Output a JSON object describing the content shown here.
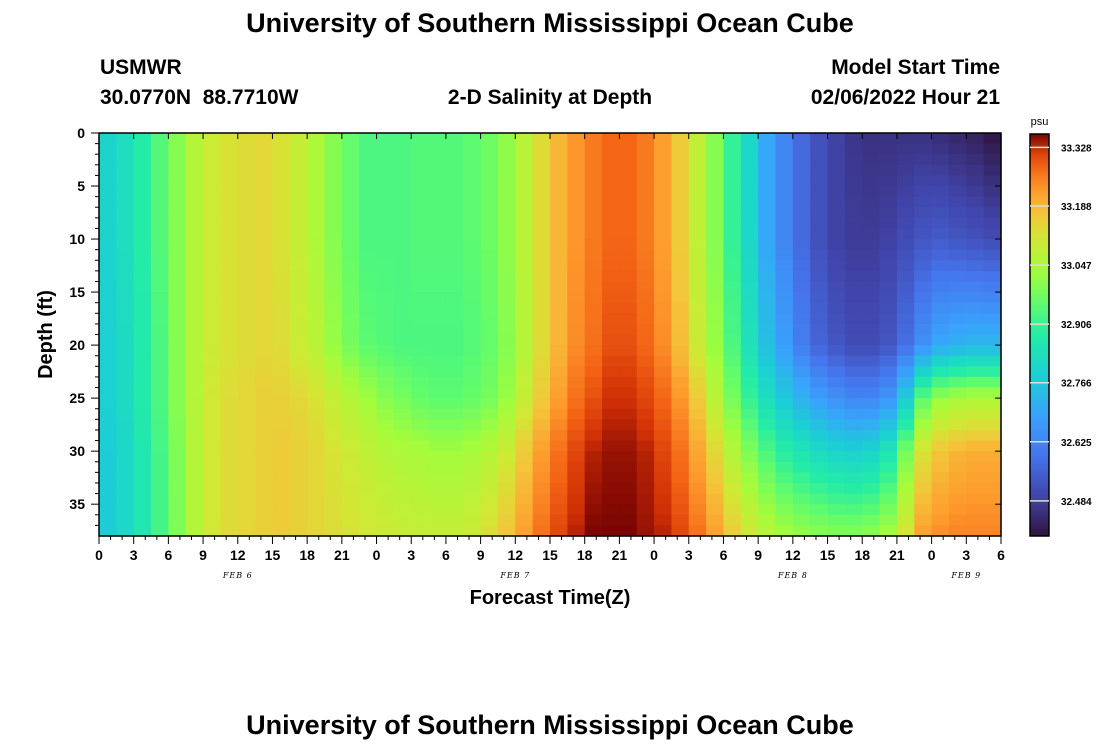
{
  "title": "University of Southern Mississippi Ocean Cube",
  "footer_title": "University of Southern Mississippi Ocean Cube",
  "station": {
    "name": "USMWR",
    "coords": "30.0770N  88.7710W"
  },
  "subtitle": "2-D Salinity at Depth",
  "model_start": {
    "label": "Model Start Time",
    "value": "02/06/2022 Hour 21"
  },
  "chart_data": {
    "type": "heatmap",
    "title": "2-D Salinity at Depth",
    "xlabel": "Forecast Time(Z)",
    "ylabel": "Depth (ft)",
    "x_tick_labels": [
      "0",
      "3",
      "6",
      "9",
      "12",
      "15",
      "18",
      "21",
      "0",
      "3",
      "6",
      "9",
      "12",
      "15",
      "18",
      "21",
      "0",
      "3",
      "6",
      "9",
      "12",
      "15",
      "18",
      "21",
      "0",
      "3",
      "6"
    ],
    "x_range_hours": [
      0,
      78
    ],
    "date_labels": [
      {
        "hour": 12,
        "label": "FEB 6"
      },
      {
        "hour": 36,
        "label": "FEB 7"
      },
      {
        "hour": 60,
        "label": "FEB 8"
      },
      {
        "hour": 75,
        "label": "FEB 9"
      }
    ],
    "y_tick_labels": [
      "0",
      "5",
      "10",
      "15",
      "20",
      "25",
      "30",
      "35"
    ],
    "y_range_ft": [
      0,
      38
    ],
    "colorbar": {
      "unit": "psu",
      "min": 32.4,
      "max": 33.36,
      "tick_labels": [
        "33.328",
        "33.188",
        "33.047",
        "32.906",
        "32.766",
        "32.625",
        "32.484"
      ]
    },
    "grid_columns_hours": [
      0,
      1.5,
      3,
      4.5,
      6,
      7.5,
      9,
      10.5,
      12,
      13.5,
      15,
      16.5,
      18,
      19.5,
      21,
      22.5,
      24,
      25.5,
      27,
      28.5,
      30,
      31.5,
      33,
      34.5,
      36,
      37.5,
      39,
      40.5,
      42,
      43.5,
      45,
      46.5,
      48,
      49.5,
      51,
      52.5,
      54,
      55.5,
      57,
      58.5,
      60,
      61.5,
      63,
      64.5,
      66,
      67.5,
      69,
      70.5,
      72,
      73.5,
      75,
      76.5
    ],
    "grid_depths_ft": [
      0,
      10,
      20,
      25,
      30,
      38
    ],
    "salinity_psu": [
      [
        32.8,
        32.8,
        32.79,
        32.79,
        32.78,
        32.78
      ],
      [
        32.83,
        32.83,
        32.82,
        32.82,
        32.81,
        32.81
      ],
      [
        32.88,
        32.88,
        32.87,
        32.87,
        32.86,
        32.86
      ],
      [
        32.94,
        32.94,
        32.93,
        32.93,
        32.92,
        32.92
      ],
      [
        33.0,
        33.0,
        33.0,
        33.0,
        32.99,
        32.99
      ],
      [
        33.06,
        33.06,
        33.06,
        33.06,
        33.06,
        33.06
      ],
      [
        33.1,
        33.1,
        33.1,
        33.11,
        33.11,
        33.11
      ],
      [
        33.12,
        33.12,
        33.12,
        33.13,
        33.13,
        33.13
      ],
      [
        33.13,
        33.13,
        33.13,
        33.14,
        33.14,
        33.14
      ],
      [
        33.14,
        33.14,
        33.14,
        33.15,
        33.15,
        33.15
      ],
      [
        33.12,
        33.12,
        33.13,
        33.15,
        33.16,
        33.16
      ],
      [
        33.09,
        33.09,
        33.1,
        33.14,
        33.15,
        33.15
      ],
      [
        33.05,
        33.05,
        33.07,
        33.12,
        33.14,
        33.14
      ],
      [
        33.0,
        33.0,
        33.02,
        33.09,
        33.12,
        33.13
      ],
      [
        32.96,
        32.96,
        32.98,
        33.06,
        33.1,
        33.12
      ],
      [
        32.93,
        32.93,
        32.95,
        33.03,
        33.08,
        33.11
      ],
      [
        32.93,
        32.93,
        32.94,
        33.0,
        33.06,
        33.1
      ],
      [
        32.93,
        32.93,
        32.93,
        32.98,
        33.05,
        33.09
      ],
      [
        32.94,
        32.94,
        32.93,
        32.96,
        33.04,
        33.09
      ],
      [
        32.94,
        32.94,
        32.93,
        32.95,
        33.03,
        33.09
      ],
      [
        32.94,
        32.94,
        32.93,
        32.95,
        33.03,
        33.09
      ],
      [
        32.95,
        32.95,
        32.94,
        32.96,
        33.04,
        33.1
      ],
      [
        32.97,
        32.97,
        32.96,
        32.98,
        33.06,
        33.13
      ],
      [
        33.01,
        33.01,
        33.0,
        33.02,
        33.1,
        33.17
      ],
      [
        33.07,
        33.07,
        33.06,
        33.09,
        33.16,
        33.22
      ],
      [
        33.13,
        33.13,
        33.13,
        33.16,
        33.22,
        33.27
      ],
      [
        33.19,
        33.19,
        33.19,
        33.22,
        33.27,
        33.31
      ],
      [
        33.23,
        33.23,
        33.24,
        33.27,
        33.31,
        33.34
      ],
      [
        33.26,
        33.26,
        33.27,
        33.3,
        33.34,
        33.36
      ],
      [
        33.28,
        33.28,
        33.3,
        33.33,
        33.35,
        33.36
      ],
      [
        33.28,
        33.28,
        33.3,
        33.33,
        33.35,
        33.36
      ],
      [
        33.26,
        33.26,
        33.28,
        33.31,
        33.34,
        33.35
      ],
      [
        33.22,
        33.22,
        33.24,
        33.28,
        33.31,
        33.34
      ],
      [
        33.16,
        33.16,
        33.18,
        33.23,
        33.27,
        33.31
      ],
      [
        33.08,
        33.08,
        33.1,
        33.16,
        33.21,
        33.27
      ],
      [
        33.0,
        33.0,
        33.02,
        33.07,
        33.14,
        33.22
      ],
      [
        32.9,
        32.9,
        32.93,
        32.98,
        33.06,
        33.16
      ],
      [
        32.81,
        32.81,
        32.84,
        32.9,
        32.99,
        33.11
      ],
      [
        32.7,
        32.7,
        32.75,
        32.83,
        32.93,
        33.07
      ],
      [
        32.63,
        32.63,
        32.68,
        32.77,
        32.88,
        33.04
      ],
      [
        32.57,
        32.57,
        32.61,
        32.72,
        32.85,
        33.02
      ],
      [
        32.52,
        32.52,
        32.56,
        32.68,
        32.82,
        33.01
      ],
      [
        32.49,
        32.49,
        32.53,
        32.65,
        32.8,
        33.0
      ],
      [
        32.47,
        32.48,
        32.51,
        32.63,
        32.79,
        33.0
      ],
      [
        32.46,
        32.48,
        32.51,
        32.63,
        32.8,
        33.01
      ],
      [
        32.46,
        32.49,
        32.53,
        32.66,
        32.85,
        33.04
      ],
      [
        32.46,
        32.51,
        32.58,
        32.78,
        32.98,
        33.12
      ],
      [
        32.46,
        32.53,
        32.65,
        32.95,
        33.12,
        33.22
      ],
      [
        32.45,
        32.54,
        32.7,
        33.02,
        33.17,
        33.24
      ],
      [
        32.44,
        32.53,
        32.72,
        33.04,
        33.19,
        33.25
      ],
      [
        32.43,
        32.52,
        32.73,
        33.05,
        33.2,
        33.25
      ],
      [
        32.41,
        32.51,
        32.73,
        33.05,
        33.2,
        33.25
      ]
    ]
  }
}
